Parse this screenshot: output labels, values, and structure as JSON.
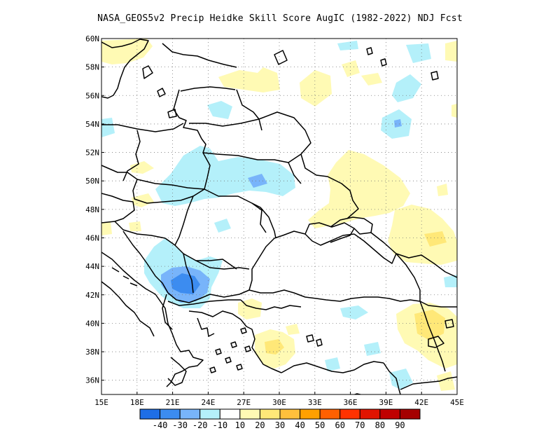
{
  "title": "NASA_GEOS5v2 Precip Heidke Skill Score AugIC (1982-2022) NDJ Fcst",
  "map": {
    "lat_ticks": [
      "60N",
      "58N",
      "56N",
      "54N",
      "52N",
      "50N",
      "48N",
      "46N",
      "44N",
      "42N",
      "40N",
      "38N",
      "36N"
    ],
    "lon_ticks": [
      "15E",
      "18E",
      "21E",
      "24E",
      "27E",
      "30E",
      "33E",
      "36E",
      "39E",
      "42E",
      "45E"
    ],
    "lat_range": [
      35,
      60
    ],
    "lon_range": [
      15,
      45
    ],
    "grid": true
  },
  "colorbar": {
    "labels": [
      "-40",
      "-30",
      "-20",
      "-10",
      "10",
      "20",
      "30",
      "40",
      "50",
      "60",
      "70",
      "80",
      "90"
    ],
    "colors": [
      "#1e6ee6",
      "#3c8cf0",
      "#78b4fa",
      "#b4f0fa",
      "#ffffff",
      "#fffab4",
      "#ffe878",
      "#ffc03c",
      "#ffa000",
      "#ff6000",
      "#ff3200",
      "#e11400",
      "#c00000",
      "#a50000"
    ]
  },
  "chart_data": {
    "type": "heatmap",
    "title": "NASA_GEOS5v2 Precip Heidke Skill Score AugIC (1982-2022) NDJ Fcst",
    "xlabel": "",
    "ylabel": "",
    "xlim": [
      15,
      45
    ],
    "ylim": [
      35,
      60
    ],
    "units": "Heidke skill score",
    "scale_levels": [
      -40,
      -30,
      -20,
      -10,
      10,
      20,
      30,
      40,
      50,
      60,
      70,
      80,
      90
    ],
    "skill_regions": [
      {
        "lon": 17.5,
        "lat": 59.0,
        "hss": 15
      },
      {
        "lon": 27.0,
        "lat": 57.2,
        "hss": 15
      },
      {
        "lon": 28.5,
        "lat": 56.0,
        "hss": 15
      },
      {
        "lon": 34.0,
        "lat": 56.2,
        "hss": 15
      },
      {
        "lon": 38.0,
        "lat": 57.5,
        "hss": 15
      },
      {
        "lon": 44.5,
        "lat": 59.0,
        "hss": 15
      },
      {
        "lon": 41.0,
        "lat": 59.0,
        "hss": -15
      },
      {
        "lon": 40.5,
        "lat": 55.8,
        "hss": -15
      },
      {
        "lon": 40.5,
        "lat": 53.5,
        "hss": -15
      },
      {
        "lon": 40.5,
        "lat": 53.9,
        "hss": -25
      },
      {
        "lon": 15.6,
        "lat": 53.6,
        "hss": -15
      },
      {
        "lon": 25.0,
        "lat": 54.8,
        "hss": -15
      },
      {
        "lon": 26.5,
        "lat": 50.2,
        "hss": -15
      },
      {
        "lon": 28.5,
        "lat": 50.0,
        "hss": -25
      },
      {
        "lon": 20.5,
        "lat": 51.2,
        "hss": 15
      },
      {
        "lon": 20.5,
        "lat": 47.8,
        "hss": 15
      },
      {
        "lon": 35.0,
        "lat": 49.5,
        "hss": 15
      },
      {
        "lon": 38.0,
        "lat": 50.0,
        "hss": 15
      },
      {
        "lon": 43.0,
        "lat": 46.0,
        "hss": 15
      },
      {
        "lon": 43.0,
        "lat": 45.8,
        "hss": 25
      },
      {
        "lon": 32.0,
        "lat": 47.0,
        "hss": 15
      },
      {
        "lon": 24.0,
        "lat": 42.6,
        "hss": -15
      },
      {
        "lon": 22.0,
        "lat": 42.5,
        "hss": -25
      },
      {
        "lon": 22.0,
        "lat": 42.7,
        "hss": -35
      },
      {
        "lon": 27.0,
        "lat": 41.3,
        "hss": 15
      },
      {
        "lon": 30.0,
        "lat": 38.5,
        "hss": 15
      },
      {
        "lon": 42.0,
        "lat": 39.6,
        "hss": 15
      },
      {
        "lon": 42.0,
        "lat": 40.0,
        "hss": 25
      },
      {
        "lon": 36.0,
        "lat": 40.4,
        "hss": -15
      },
      {
        "lon": 45.0,
        "lat": 38.5,
        "hss": 15
      },
      {
        "lon": 40.0,
        "lat": 36.5,
        "hss": -15
      },
      {
        "lon": 43.5,
        "lat": 36.0,
        "hss": 15
      }
    ]
  }
}
